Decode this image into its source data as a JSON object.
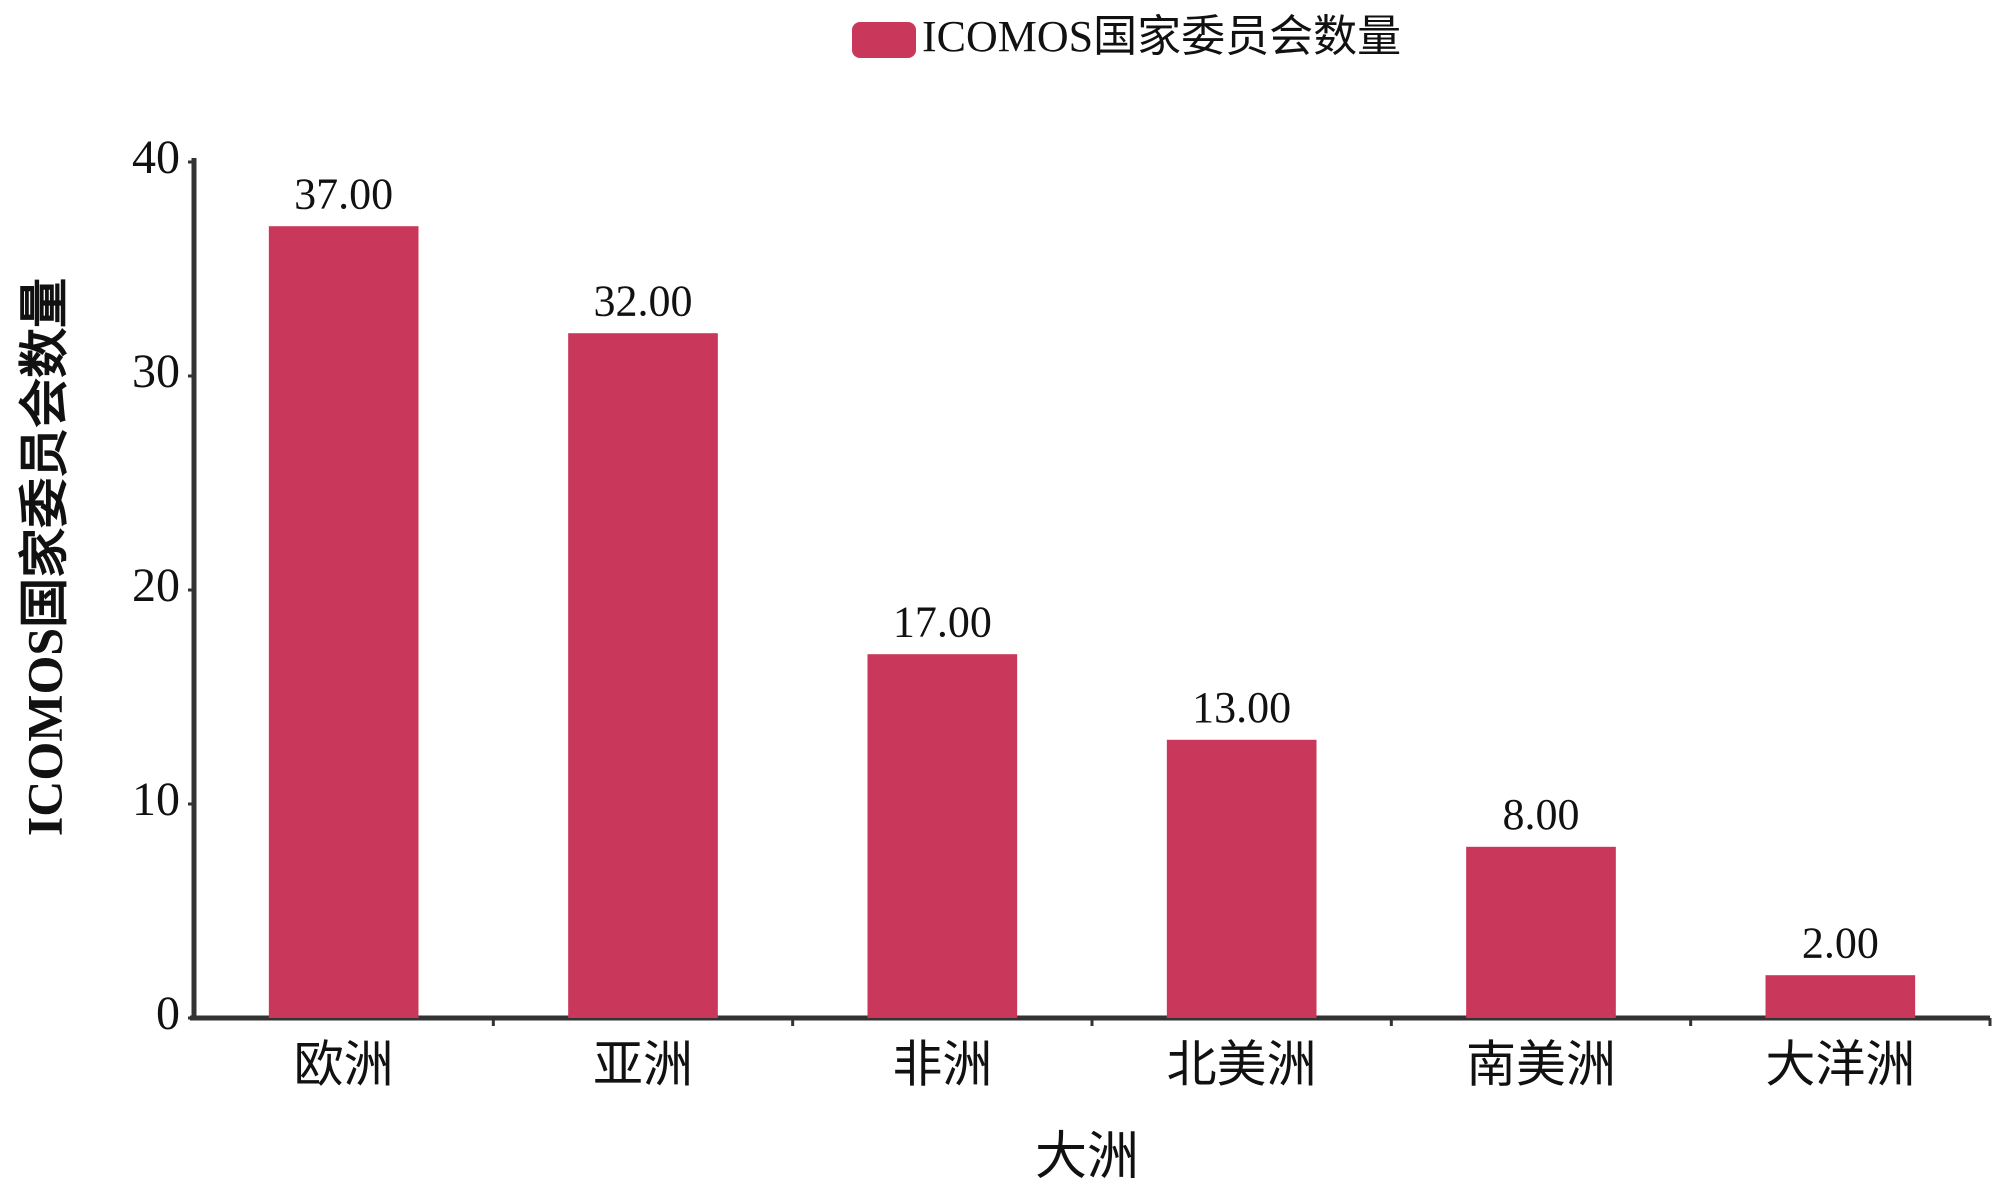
{
  "chart_data": {
    "type": "bar",
    "x_label": "大洲",
    "y_label": "ICOMOS国家委员会数量",
    "categories": [
      "欧洲",
      "亚洲",
      "非洲",
      "北美洲",
      "南美洲",
      "大洋洲"
    ],
    "series": [
      {
        "name": "ICOMOS国家委员会数量",
        "color": "#c9385a",
        "values": [
          37,
          32,
          17,
          13,
          8,
          2
        ],
        "value_labels": [
          "37.00",
          "32.00",
          "17.00",
          "13.00",
          "8.00",
          "2.00"
        ]
      }
    ],
    "ylim": [
      0,
      40
    ],
    "yticks": [
      0,
      10,
      20,
      30,
      40
    ],
    "grid": false,
    "legend": "top"
  }
}
